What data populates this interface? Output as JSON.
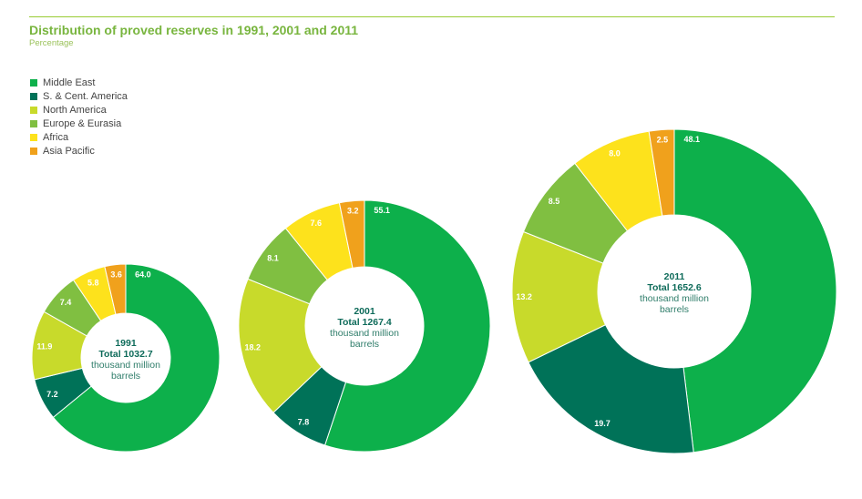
{
  "title": "Distribution of proved reserves in 1991, 2001 and 2011",
  "subtitle": "Percentage",
  "colors": {
    "Middle East": "#0db04b",
    "S. & Cent. America": "#007258",
    "North America": "#c8da2b",
    "Europe & Eurasia": "#80bf41",
    "Africa": "#fde21c",
    "Asia Pacific": "#f0a11c"
  },
  "legend": [
    {
      "name": "Middle East",
      "color": "#0db04b"
    },
    {
      "name": "S. & Cent. America",
      "color": "#007258"
    },
    {
      "name": "North America",
      "color": "#c8da2b"
    },
    {
      "name": "Europe & Eurasia",
      "color": "#80bf41"
    },
    {
      "name": "Africa",
      "color": "#fde21c"
    },
    {
      "name": "Asia Pacific",
      "color": "#f0a11c"
    }
  ],
  "chart_data": [
    {
      "type": "pie",
      "year": "1991",
      "total_label": "Total 1032.7",
      "unit_lines": [
        "thousand million",
        "barrels"
      ],
      "categories": [
        "Middle East",
        "S. & Cent. America",
        "North America",
        "Europe & Eurasia",
        "Africa",
        "Asia Pacific"
      ],
      "values": [
        64.0,
        7.2,
        11.9,
        7.4,
        5.8,
        3.6
      ],
      "labels": [
        "64.0",
        "7.2",
        "11.9",
        "7.4",
        "5.8",
        "3.6"
      ]
    },
    {
      "type": "pie",
      "year": "2001",
      "total_label": "Total 1267.4",
      "unit_lines": [
        "thousand million",
        "barrels"
      ],
      "categories": [
        "Middle East",
        "S. & Cent. America",
        "North America",
        "Europe & Eurasia",
        "Africa",
        "Asia Pacific"
      ],
      "values": [
        55.1,
        7.8,
        18.2,
        8.1,
        7.6,
        3.2
      ],
      "labels": [
        "55.1",
        "7.8",
        "18.2",
        "8.1",
        "7.6",
        "3.2"
      ]
    },
    {
      "type": "pie",
      "year": "2011",
      "total_label": "Total 1652.6",
      "unit_lines": [
        "thousand million",
        "barrels"
      ],
      "categories": [
        "Middle East",
        "S. & Cent. America",
        "North America",
        "Europe & Eurasia",
        "Africa",
        "Asia Pacific"
      ],
      "values": [
        48.1,
        19.7,
        13.2,
        8.5,
        8.0,
        2.5
      ],
      "labels": [
        "48.1",
        "19.7",
        "13.2",
        "8.5",
        "8.0",
        "2.5"
      ]
    }
  ]
}
